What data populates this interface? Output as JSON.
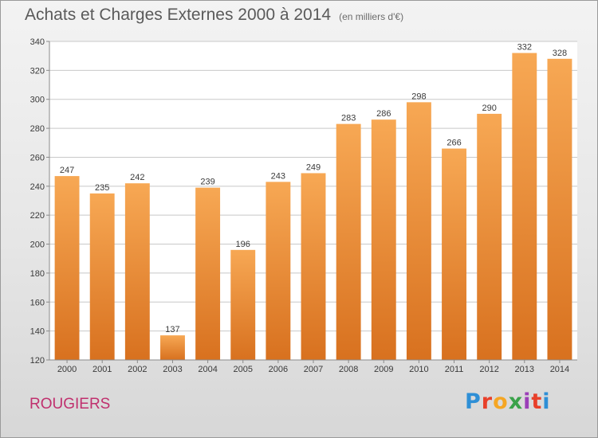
{
  "header": {
    "title": "Achats et Charges Externes 2000 à 2014",
    "subtitle": "(en milliers d'€)"
  },
  "footer": {
    "commune": "ROUGIERS",
    "logo_text": "Proxiti",
    "logo_colors": [
      "#2e8fd6",
      "#e8402a",
      "#f5a623",
      "#3aa24a",
      "#9b3fb8",
      "#e8402a",
      "#2e8fd6"
    ]
  },
  "colors": {
    "bar_light": "#f7a854",
    "bar_dark": "#d8711f",
    "grid": "#c8c8c8",
    "plot_bg": "#ffffff"
  },
  "chart_data": {
    "type": "bar",
    "title": "Achats et Charges Externes 2000 à 2014",
    "subtitle": "(en milliers d'€)",
    "categories": [
      "2000",
      "2001",
      "2002",
      "2003",
      "2004",
      "2005",
      "2006",
      "2007",
      "2008",
      "2009",
      "2010",
      "2011",
      "2012",
      "2013",
      "2014"
    ],
    "values": [
      247,
      235,
      242,
      137,
      239,
      196,
      243,
      249,
      283,
      286,
      298,
      266,
      290,
      332,
      328
    ],
    "ylim": [
      120,
      340
    ],
    "yticks": [
      120,
      140,
      160,
      180,
      200,
      220,
      240,
      260,
      280,
      300,
      320,
      340
    ],
    "grid": true,
    "data_labels": true
  }
}
